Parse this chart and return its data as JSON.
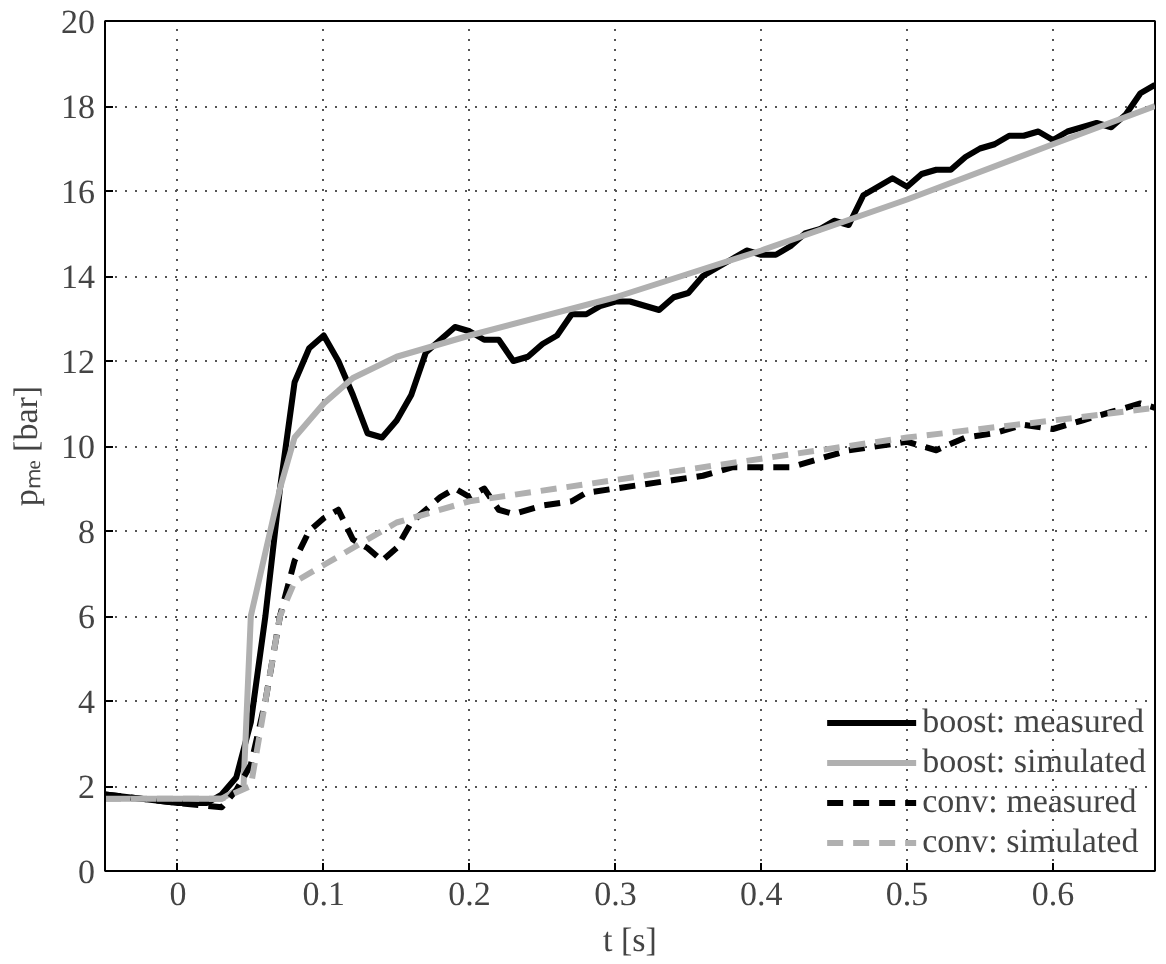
{
  "chart_data": {
    "type": "line",
    "xlabel": "t [s]",
    "ylabel": "pₘₑ [bar]",
    "xlim": [
      -0.05,
      0.67
    ],
    "xticks": [
      0,
      0.1,
      0.2,
      0.3,
      0.4,
      0.5,
      0.6
    ],
    "ylim": [
      0,
      20
    ],
    "yticks": [
      0,
      2,
      4,
      6,
      8,
      10,
      12,
      14,
      16,
      18,
      20
    ],
    "grid": true,
    "legend": "bottom right",
    "series": [
      {
        "name": "boost: measured",
        "color": "#000000",
        "line_style": "solid",
        "x": [
          -0.05,
          0,
          0.02,
          0.03,
          0.04,
          0.05,
          0.06,
          0.07,
          0.08,
          0.09,
          0.1,
          0.11,
          0.12,
          0.13,
          0.14,
          0.15,
          0.16,
          0.17,
          0.18,
          0.19,
          0.2,
          0.21,
          0.22,
          0.23,
          0.24,
          0.25,
          0.26,
          0.27,
          0.28,
          0.29,
          0.3,
          0.31,
          0.32,
          0.33,
          0.34,
          0.35,
          0.36,
          0.37,
          0.38,
          0.39,
          0.4,
          0.41,
          0.42,
          0.43,
          0.44,
          0.45,
          0.46,
          0.47,
          0.48,
          0.49,
          0.5,
          0.51,
          0.52,
          0.53,
          0.54,
          0.55,
          0.56,
          0.57,
          0.58,
          0.59,
          0.6,
          0.61,
          0.62,
          0.63,
          0.64,
          0.65,
          0.66,
          0.67
        ],
        "values": [
          1.8,
          1.6,
          1.6,
          1.8,
          2.2,
          3.5,
          6,
          9,
          11.5,
          12.3,
          12.6,
          12,
          11.2,
          10.3,
          10.2,
          10.6,
          11.2,
          12.2,
          12.5,
          12.8,
          12.7,
          12.5,
          12.5,
          12.0,
          12.1,
          12.4,
          12.6,
          13.1,
          13.1,
          13.3,
          13.4,
          13.4,
          13.3,
          13.2,
          13.5,
          13.6,
          14.0,
          14.2,
          14.4,
          14.6,
          14.5,
          14.5,
          14.7,
          15.0,
          15.1,
          15.3,
          15.2,
          15.9,
          16.1,
          16.3,
          16.1,
          16.4,
          16.5,
          16.5,
          16.8,
          17.0,
          17.1,
          17.3,
          17.3,
          17.4,
          17.2,
          17.4,
          17.5,
          17.6,
          17.5,
          17.8,
          18.3,
          18.5
        ]
      },
      {
        "name": "boost: simulated",
        "color": "#b0b0b0",
        "line_style": "solid",
        "x": [
          -0.05,
          0.03,
          0.045,
          0.05,
          0.06,
          0.07,
          0.08,
          0.09,
          0.1,
          0.12,
          0.15,
          0.2,
          0.3,
          0.4,
          0.5,
          0.6,
          0.67
        ],
        "values": [
          1.7,
          1.7,
          2,
          6,
          7.5,
          9,
          10.2,
          10.6,
          11,
          11.6,
          12.1,
          12.6,
          13.5,
          14.6,
          15.8,
          17.1,
          18.0
        ]
      },
      {
        "name": "conv: measured",
        "color": "#000000",
        "line_style": "dashed",
        "x": [
          -0.05,
          0,
          0.03,
          0.04,
          0.05,
          0.06,
          0.07,
          0.08,
          0.09,
          0.1,
          0.11,
          0.12,
          0.13,
          0.14,
          0.15,
          0.16,
          0.18,
          0.19,
          0.2,
          0.21,
          0.22,
          0.23,
          0.25,
          0.27,
          0.28,
          0.3,
          0.32,
          0.34,
          0.36,
          0.38,
          0.4,
          0.42,
          0.44,
          0.46,
          0.48,
          0.5,
          0.52,
          0.54,
          0.56,
          0.58,
          0.6,
          0.62,
          0.64,
          0.66,
          0.67
        ],
        "values": [
          1.8,
          1.6,
          1.5,
          1.9,
          2.5,
          4,
          6,
          7.3,
          8.0,
          8.3,
          8.5,
          7.8,
          7.6,
          7.3,
          7.6,
          8.2,
          8.8,
          9.0,
          8.8,
          9.0,
          8.5,
          8.4,
          8.6,
          8.7,
          8.9,
          9.0,
          9.1,
          9.2,
          9.3,
          9.5,
          9.5,
          9.5,
          9.7,
          9.9,
          10.0,
          10.1,
          9.9,
          10.2,
          10.3,
          10.5,
          10.4,
          10.6,
          10.8,
          11.0,
          10.9
        ]
      },
      {
        "name": "conv: simulated",
        "color": "#b0b0b0",
        "line_style": "dashed",
        "x": [
          -0.05,
          0.03,
          0.05,
          0.06,
          0.07,
          0.08,
          0.1,
          0.15,
          0.2,
          0.3,
          0.4,
          0.5,
          0.6,
          0.67
        ],
        "values": [
          1.7,
          1.7,
          2.0,
          4.0,
          6.0,
          6.8,
          7.2,
          8.2,
          8.7,
          9.2,
          9.7,
          10.2,
          10.6,
          10.9
        ]
      }
    ]
  }
}
